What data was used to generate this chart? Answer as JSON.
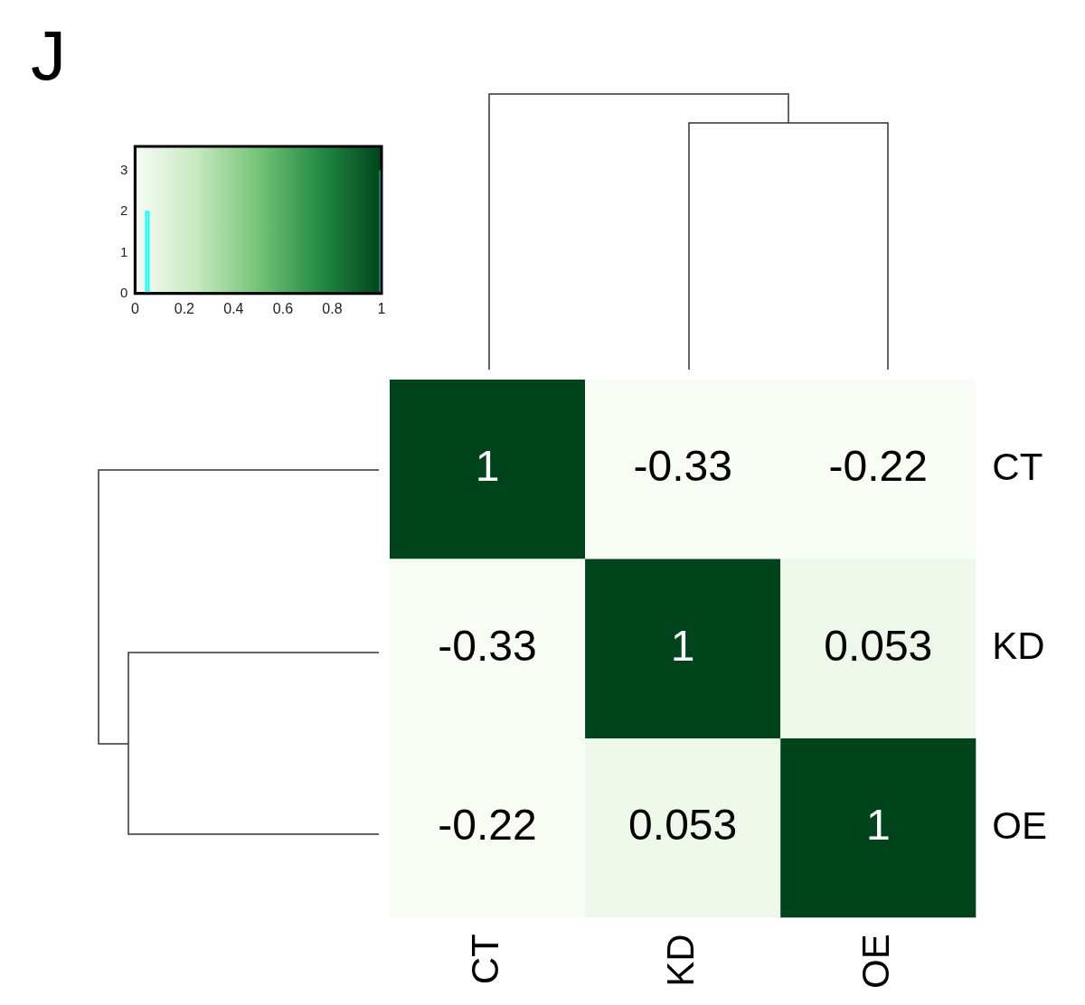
{
  "chart_data": [
    {
      "type": "line",
      "x": [
        0.045,
        0.045,
        0.055,
        0.055,
        0.995,
        0.995,
        1
      ],
      "series": [
        {
          "color": "#00ffff",
          "values": [
            0,
            2,
            2,
            0,
            0,
            3,
            3
          ]
        }
      ],
      "xlim": [
        0,
        1
      ],
      "xticks": [
        0,
        0.2,
        0.4,
        0.6,
        0.8,
        1
      ],
      "ylim": [
        0,
        3.6
      ],
      "yticks": [
        0,
        1,
        2,
        3
      ],
      "grid": false,
      "legend": false,
      "marker": "none"
    },
    {
      "type": "heatmap",
      "title": "J",
      "categories": [
        "CT",
        "KD",
        "OE"
      ],
      "y_categories": [
        "CT",
        "KD",
        "OE"
      ],
      "cells": [
        [
          1,
          -0.33,
          -0.22
        ],
        [
          -0.33,
          1,
          0.053
        ],
        [
          -0.22,
          0.053,
          1
        ]
      ],
      "data_labels": true,
      "legend": false
    }
  ]
}
